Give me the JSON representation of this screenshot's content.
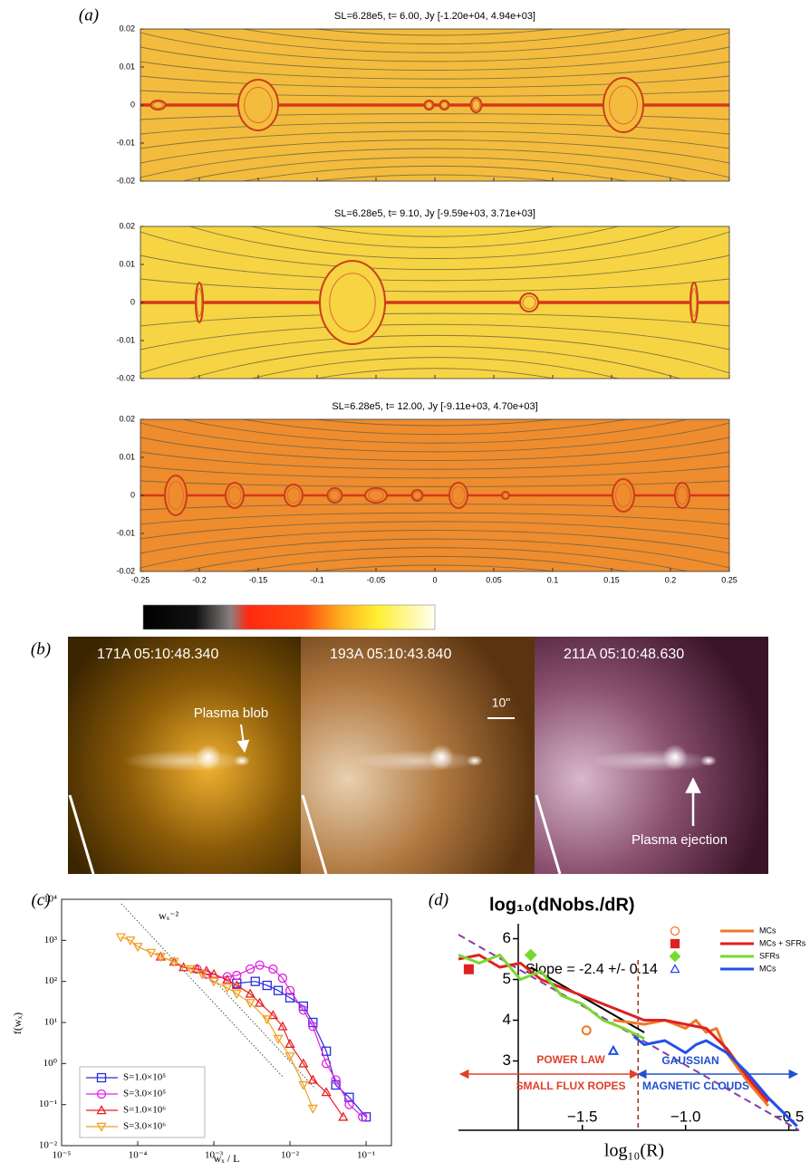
{
  "panel_a": {
    "label": "(a)",
    "titles": [
      "SL=6.28e5, t= 6.00, Jy [-1.20e+04, 4.94e+03]",
      "SL=6.28e5, t= 9.10, Jy [-9.59e+03, 3.71e+03]",
      "SL=6.28e5, t= 12.00, Jy [-9.11e+03, 4.70e+03]"
    ],
    "xlim": [
      -0.25,
      0.25
    ],
    "ylim": [
      -0.02,
      0.02
    ],
    "xticks": [
      -0.25,
      -0.2,
      -0.15,
      -0.1,
      -0.05,
      0,
      0.05,
      0.1,
      0.15,
      0.2,
      0.25
    ],
    "yticks": [
      0.02,
      0.01,
      0,
      -0.01,
      -0.02
    ]
  },
  "panel_b": {
    "label": "(b)",
    "images": [
      {
        "label": "171A 05:10:48.340",
        "annotation": "Plasma blob"
      },
      {
        "label": "193A 05:10:43.840",
        "annotation": "10\""
      },
      {
        "label": "211A 05:10:48.630",
        "annotation": "Plasma ejection"
      }
    ]
  },
  "chart_data": [
    {
      "type": "line",
      "panel_label": "(c)",
      "log_x": true,
      "log_y": true,
      "xlabel": "wₓ / L",
      "ylabel": "f(wₓ)",
      "annotation": "wₓ⁻²",
      "xlim": [
        1e-05,
        0.215
      ],
      "ylim": [
        0.01,
        10000
      ],
      "xticks": [
        {
          "value": 1e-05,
          "label": "10⁻⁵"
        },
        {
          "value": 0.0001,
          "label": "10⁻⁴"
        },
        {
          "value": 0.001,
          "label": "10⁻³"
        },
        {
          "value": 0.01,
          "label": "10⁻²"
        },
        {
          "value": 0.1,
          "label": "10⁻¹"
        }
      ],
      "yticks": [
        {
          "value": 0.01,
          "label": "10⁻²"
        },
        {
          "value": 0.1,
          "label": "10⁻¹"
        },
        {
          "value": 1,
          "label": "10⁰"
        },
        {
          "value": 10,
          "label": "10¹"
        },
        {
          "value": 100,
          "label": "10²"
        },
        {
          "value": 1000,
          "label": "10³"
        },
        {
          "value": 10000,
          "label": "10⁴"
        }
      ],
      "legend": "lower left",
      "series": [
        {
          "name": "S=1.0×10⁵",
          "color": "#2a2ae0",
          "marker": "square",
          "x": [
            0.002,
            0.0035,
            0.005,
            0.007,
            0.01,
            0.015,
            0.02,
            0.03,
            0.04,
            0.06,
            0.1
          ],
          "values": [
            90,
            100,
            80,
            60,
            40,
            25,
            10,
            2,
            0.3,
            0.15,
            0.05
          ]
        },
        {
          "name": "S=3.0×10⁵",
          "color": "#e020e0",
          "marker": "circle",
          "x": [
            0.0006,
            0.0008,
            0.001,
            0.0015,
            0.002,
            0.003,
            0.004,
            0.006,
            0.008,
            0.01,
            0.015,
            0.02,
            0.03,
            0.04,
            0.06,
            0.09
          ],
          "values": [
            200,
            150,
            120,
            130,
            140,
            200,
            250,
            200,
            120,
            60,
            20,
            8,
            1,
            0.4,
            0.1,
            0.05
          ]
        },
        {
          "name": "S=1.0×10⁶",
          "color": "#e82020",
          "marker": "triangle",
          "x": [
            0.0002,
            0.0003,
            0.0004,
            0.0006,
            0.0008,
            0.001,
            0.0015,
            0.002,
            0.003,
            0.004,
            0.006,
            0.008,
            0.01,
            0.015,
            0.02,
            0.03,
            0.05
          ],
          "values": [
            400,
            300,
            220,
            200,
            180,
            150,
            110,
            80,
            50,
            30,
            15,
            8,
            3,
            1,
            0.4,
            0.2,
            0.05
          ]
        },
        {
          "name": "S=3.0×10⁶",
          "color": "#f0a020",
          "marker": "down-triangle",
          "x": [
            6e-05,
            8e-05,
            0.0001,
            0.00015,
            0.0002,
            0.0003,
            0.0005,
            0.0007,
            0.001,
            0.0015,
            0.002,
            0.003,
            0.005,
            0.007,
            0.01,
            0.015,
            0.02
          ],
          "values": [
            1200,
            1000,
            700,
            500,
            400,
            300,
            200,
            150,
            100,
            70,
            50,
            30,
            12,
            4,
            1.5,
            0.3,
            0.08
          ]
        }
      ]
    },
    {
      "type": "line",
      "panel_label": "(d)",
      "title": "log₁₀(dNobs./dR)",
      "xlabel": "log₁₀(R)",
      "xlim": [
        -2.1,
        -0.45
      ],
      "ylim": [
        1.3,
        6.5
      ],
      "xticks": [
        {
          "value": -1.5,
          "label": "−1.5"
        },
        {
          "value": -1,
          "label": "−1.0"
        },
        {
          "value": -0.5,
          "label": "−0.5"
        }
      ],
      "yticks": [
        3,
        4,
        5,
        6
      ],
      "legend": "upper right",
      "slope_label": "Slope = -2.4 +/- 0.14",
      "boundary_x": -1.23,
      "annotations": [
        {
          "text": "POWER LAW",
          "color": "#e0402a"
        },
        {
          "text": "SMALL FLUX ROPES",
          "color": "#e0402a"
        },
        {
          "text": "GAUSSIAN",
          "color": "#2050d0"
        },
        {
          "text": "MAGNETIC CLOUDS",
          "color": "#2050d0"
        }
      ],
      "fit": {
        "color": "#8a3aa8",
        "x": [
          -2.1,
          -0.45
        ],
        "values": [
          6.1,
          1.3
        ]
      },
      "trend": {
        "color": "#000000",
        "x": [
          -1.75,
          -1.2
        ],
        "values": [
          5.3,
          3.7
        ]
      },
      "series": [
        {
          "name": "MCs",
          "color": "#f07a28",
          "marker": "circle",
          "point_x": -1.48,
          "point_y": 3.75,
          "x": [
            -1.35,
            -1.2,
            -1.1,
            -1,
            -0.95,
            -0.9,
            -0.85,
            -0.8,
            -0.7,
            -0.6
          ],
          "values": [
            4,
            3.9,
            4,
            3.8,
            4,
            3.7,
            3.8,
            3.2,
            2.5,
            1.9
          ]
        },
        {
          "name": "MCs + SFRs",
          "color": "#e02020",
          "marker": "square",
          "point_x": -2.05,
          "point_y": 5.25,
          "x": [
            -2.1,
            -2,
            -1.9,
            -1.8,
            -1.7,
            -1.6,
            -1.5,
            -1.4,
            -1.3,
            -1.2,
            -1.1,
            -1,
            -0.9,
            -0.8,
            -0.7,
            -0.6
          ],
          "values": [
            5.5,
            5.6,
            5.3,
            5.4,
            5,
            4.8,
            4.6,
            4.4,
            4.2,
            4,
            4,
            3.9,
            3.8,
            3.3,
            2.6,
            2
          ]
        },
        {
          "name": "SFRs",
          "color": "#78d830",
          "marker": "diamond",
          "point_x": -1.75,
          "point_y": 5.6,
          "x": [
            -2.1,
            -2,
            -1.9,
            -1.8,
            -1.7,
            -1.6,
            -1.5,
            -1.4,
            -1.3,
            -1.2
          ],
          "values": [
            5.6,
            5.4,
            5.6,
            5,
            5.2,
            4.6,
            4.4,
            4,
            3.8,
            3.55
          ]
        },
        {
          "name": "MCs",
          "color": "#2050e8",
          "marker": "triangle",
          "point_x": -1.35,
          "point_y": 3.25,
          "x": [
            -1.25,
            -1.2,
            -1.1,
            -1,
            -0.95,
            -0.9,
            -0.8,
            -0.7,
            -0.6,
            -0.5,
            -0.46
          ],
          "values": [
            3.6,
            3.4,
            3.5,
            3.2,
            3.4,
            3.5,
            3.2,
            2.7,
            2.1,
            1.6,
            1.4
          ]
        }
      ]
    }
  ]
}
